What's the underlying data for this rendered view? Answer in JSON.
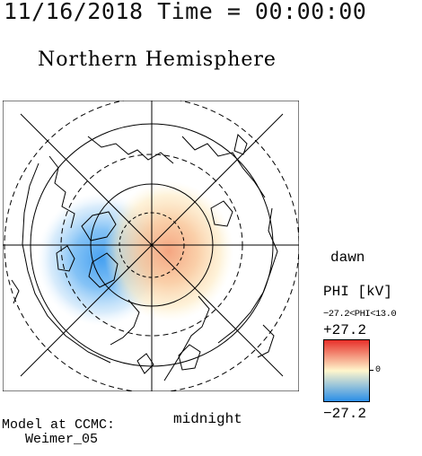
{
  "header": {
    "timestamp": "11/16/2018 Time = 00:00:00",
    "hemisphere": "Northern Hemisphere"
  },
  "map": {
    "labels": {
      "dawn": "dawn",
      "midnight": "midnight"
    }
  },
  "colorbar": {
    "title": "PHI [kV]",
    "range_text": "−27.2<PHI<13.0",
    "max_label": "+27.2",
    "min_label": "−27.2",
    "zero_label": "0",
    "colors": {
      "high": "#e8302a",
      "mid": "#fff6cc",
      "low": "#2a8ee8"
    }
  },
  "footer": {
    "model_label": "Model at CCMC:",
    "model_name": "Weimer_05"
  }
}
